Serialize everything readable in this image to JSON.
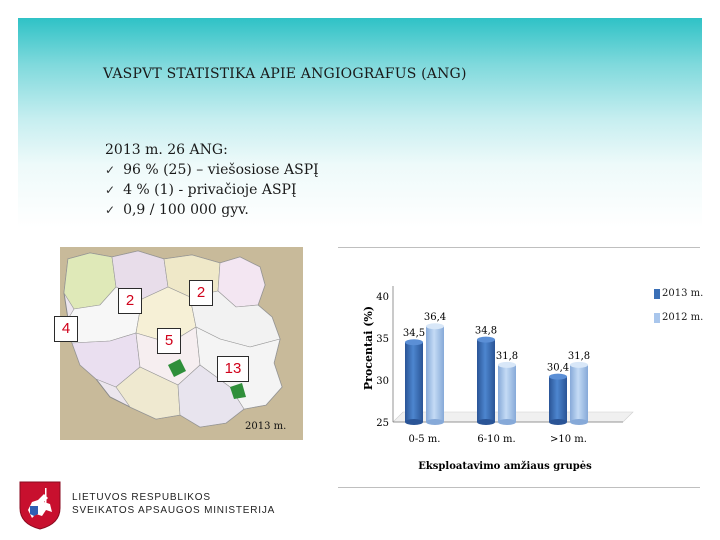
{
  "title": "VASPVT STATISTIKA APIE ANGIOGRAFUS (ANG)",
  "info": {
    "heading": "2013 m. 26 ANG:",
    "items": [
      "96 % (25) – viešosiose ASPĮ",
      "4 % (1) - privačioje ASPĮ",
      "0,9 / 100 000 gyv."
    ]
  },
  "map": {
    "badges": [
      "2",
      "2",
      "4",
      "5",
      "13"
    ],
    "year_label": "2013 m."
  },
  "colors": {
    "series_2013": "#3a6fb6",
    "series_2012": "#a9c6ec",
    "accent_red": "#d0021b"
  },
  "chart_data": {
    "type": "bar",
    "categories": [
      "0-5 m.",
      "6-10 m.",
      ">10 m."
    ],
    "series": [
      {
        "name": "2013 m.",
        "values": [
          34.5,
          34.8,
          30.4
        ]
      },
      {
        "name": "2012 m.",
        "values": [
          36.4,
          31.8,
          31.8
        ]
      }
    ],
    "value_labels": {
      "2013 m.": [
        "34,5",
        "34,8",
        "30,4"
      ],
      "2012 m.": [
        "36,4",
        "31,8",
        "31,8"
      ]
    },
    "xlabel": "Eksploatavimo amžiaus grupės",
    "ylabel": "Procentai (%)",
    "ylim": [
      25,
      40
    ],
    "yticks": [
      "25",
      "30",
      "35",
      "40"
    ],
    "legend_position": "right"
  },
  "footer": {
    "line1": "LIETUVOS RESPUBLIKOS",
    "line2": "SVEIKATOS APSAUGOS MINISTERIJA"
  }
}
